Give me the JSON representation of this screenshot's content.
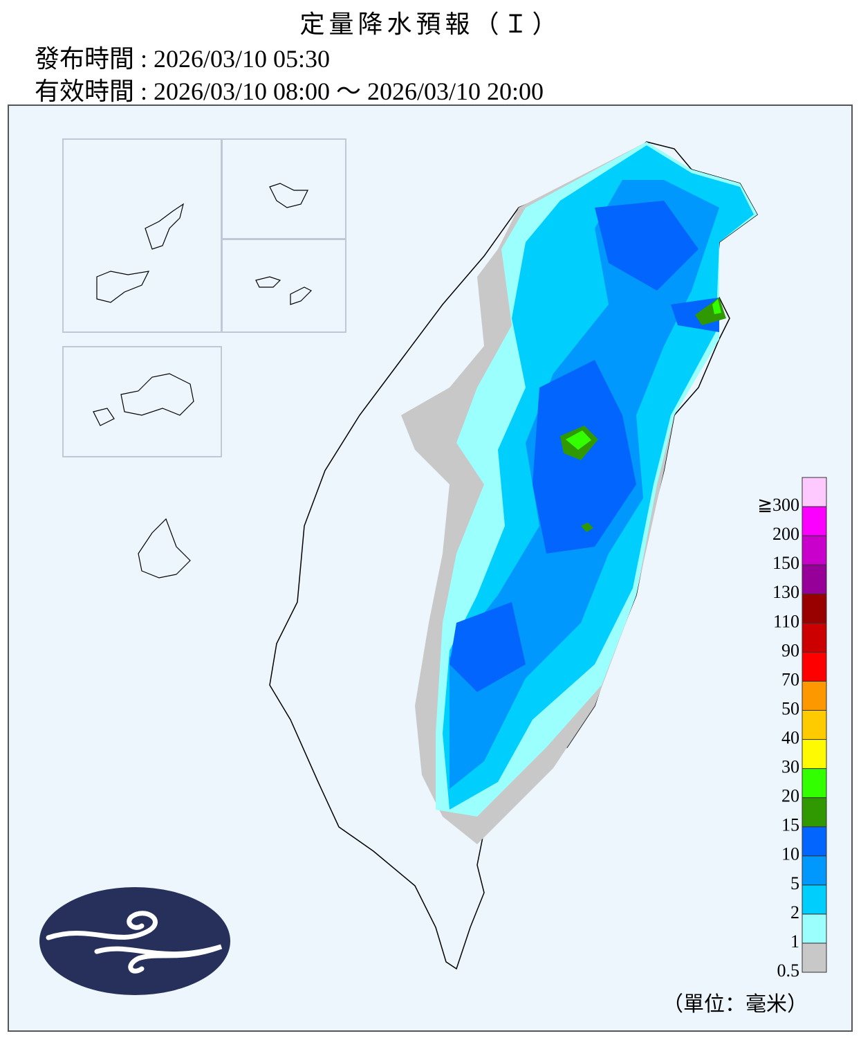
{
  "header": {
    "title": "定量降水預報（Ｉ）",
    "issued": "發布時間 : 2026/03/10 05:30",
    "valid": "有效時間 : 2026/03/10 08:00 ～ 2026/03/10 20:00"
  },
  "legend": {
    "levels": [
      0.5,
      1,
      2,
      5,
      10,
      15,
      20,
      30,
      40,
      50,
      70,
      90,
      110,
      130,
      150,
      200,
      {
        "value": 300,
        "label": "≧300"
      }
    ],
    "colors": [
      "#c8c8c8",
      "#9bfffe",
      "#00cffe",
      "#0198fe",
      "#0165fe",
      "#309901",
      "#32ff00",
      "#fefa02",
      "#fecb00",
      "#fe9800",
      "#fe0000",
      "#cc0000",
      "#990000",
      "#960099",
      "#c900cc",
      "#fb00ff",
      "#fdc9ff"
    ],
    "unit": "（單位：毫米）"
  }
}
